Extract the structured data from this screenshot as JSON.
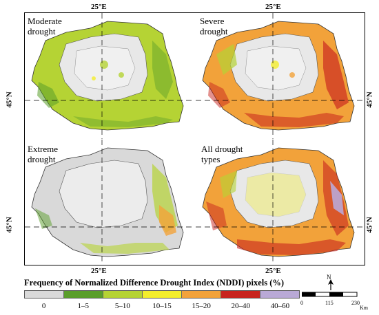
{
  "map": {
    "panels": [
      {
        "id": "moderate",
        "title": "Moderate\ndrought"
      },
      {
        "id": "severe",
        "title": "Severe\ndrought"
      },
      {
        "id": "extreme",
        "title": "Extreme\ndrought"
      },
      {
        "id": "all",
        "title": "All drought\ntypes"
      }
    ],
    "coords": {
      "lon_label": "25°E",
      "lat_label": "45°N"
    }
  },
  "legend": {
    "title": "Frequency of Normalized Difference Drought Index (NDDI) pixels (%)",
    "classes": [
      {
        "label": "0",
        "color": "#d9d9d9"
      },
      {
        "label": "1–5",
        "color": "#5a9e2a"
      },
      {
        "label": "5–10",
        "color": "#b5d334"
      },
      {
        "label": "10–15",
        "color": "#f4ee2c"
      },
      {
        "label": "15–20",
        "color": "#f2a23a"
      },
      {
        "label": "20–40",
        "color": "#c8241e"
      },
      {
        "label": "40–60",
        "color": "#b9a9d6"
      }
    ]
  },
  "north": {
    "label": "N"
  },
  "scale": {
    "ticks": [
      "0",
      "115",
      "230"
    ],
    "unit": "Km"
  }
}
